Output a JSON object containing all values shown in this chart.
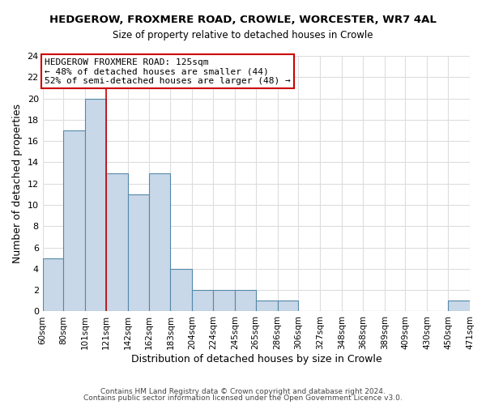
{
  "title": "HEDGEROW, FROXMERE ROAD, CROWLE, WORCESTER, WR7 4AL",
  "subtitle": "Size of property relative to detached houses in Crowle",
  "xlabel": "Distribution of detached houses by size in Crowle",
  "ylabel": "Number of detached properties",
  "bar_color": "#c8d8e8",
  "bar_edge_color": "#5588aa",
  "bin_edges": [
    60,
    80,
    101,
    121,
    142,
    162,
    183,
    204,
    224,
    245,
    265,
    286,
    306,
    327,
    348,
    368,
    389,
    409,
    430,
    450,
    471
  ],
  "bin_labels": [
    "60sqm",
    "80sqm",
    "101sqm",
    "121sqm",
    "142sqm",
    "162sqm",
    "183sqm",
    "204sqm",
    "224sqm",
    "245sqm",
    "265sqm",
    "286sqm",
    "306sqm",
    "327sqm",
    "348sqm",
    "368sqm",
    "389sqm",
    "409sqm",
    "430sqm",
    "450sqm",
    "471sqm"
  ],
  "counts": [
    5,
    17,
    20,
    13,
    11,
    13,
    4,
    2,
    2,
    2,
    1,
    1,
    0,
    0,
    0,
    0,
    0,
    0,
    0,
    1
  ],
  "ylim": [
    0,
    24
  ],
  "yticks": [
    0,
    2,
    4,
    6,
    8,
    10,
    12,
    14,
    16,
    18,
    20,
    22,
    24
  ],
  "vline_x": 121,
  "vline_color": "#cc0000",
  "annotation_title": "HEDGEROW FROXMERE ROAD: 125sqm",
  "annotation_line1": "← 48% of detached houses are smaller (44)",
  "annotation_line2": "52% of semi-detached houses are larger (48) →",
  "footer1": "Contains HM Land Registry data © Crown copyright and database right 2024.",
  "footer2": "Contains public sector information licensed under the Open Government Licence v3.0.",
  "background_color": "#ffffff",
  "grid_color": "#dddddd"
}
